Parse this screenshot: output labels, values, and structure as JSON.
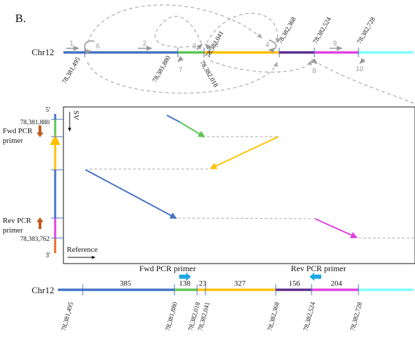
{
  "panel_label": "B.",
  "chrom": "Chr12",
  "colors": {
    "blue": "#4472c4",
    "green": "#5cc551",
    "yellow": "#ffc000",
    "purple": "#5b2c8d",
    "magenta": "#e040e0",
    "cyan": "#7fffff",
    "orange": "#e86a2a",
    "arrow_orange": "#c0581e",
    "pcr_blue": "#1ea7e4",
    "gray": "#999999"
  },
  "top_track": {
    "breakpoints": [
      "78,381,495",
      "78,381,880",
      "78,382,018",
      "78,382,041",
      "78,382,368",
      "78,382,524",
      "78,382,728"
    ],
    "step_numbers": [
      "1",
      "2",
      "3",
      "4",
      "5",
      "6",
      "7",
      "8",
      "9",
      "10"
    ]
  },
  "dotplot": {
    "y_label": "SV",
    "x_label": "Reference",
    "five_prime": "5'",
    "three_prime": "3'",
    "top_coord": "78,381,880",
    "bottom_coord": "78,383,762",
    "fwd_primer": [
      "Fwd PCR",
      "primer"
    ],
    "rev_primer": [
      "Rev PCR",
      "primer"
    ]
  },
  "bottom_track": {
    "fwd_primer_label": "Fwd PCR primer",
    "rev_primer_label": "Rev PCR primer",
    "segment_lengths": [
      "385",
      "138",
      "23",
      "327",
      "156",
      "204"
    ],
    "breakpoints": [
      "78,381,495",
      "78,381,880",
      "78,382,018",
      "78,382,041",
      "78,382,368",
      "78,382,524",
      "78,382,728"
    ]
  }
}
